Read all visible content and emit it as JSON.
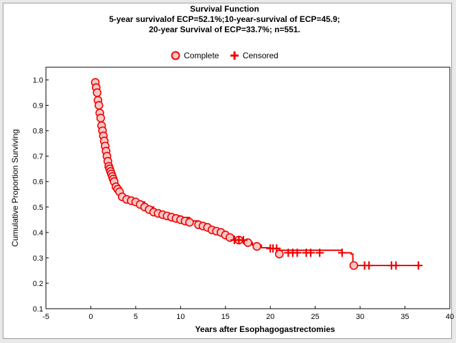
{
  "chart_data": {
    "type": "line",
    "title": "Survival Function",
    "subtitle_lines": [
      "5-year survivalof ECP=52.1%;10-year-survival of ECP=45.9;",
      "20-year Survival of ECP=33.7%; n=551."
    ],
    "xlabel": "Years after Esophagogastrectomies",
    "ylabel": "Cumulative Proportion Surviving",
    "xlim": [
      -5,
      40
    ],
    "ylim": [
      0.1,
      1.05
    ],
    "xticks": [
      -5,
      0,
      5,
      10,
      15,
      20,
      25,
      30,
      35,
      40
    ],
    "yticks": [
      0.1,
      0.2,
      0.3,
      0.4,
      0.5,
      0.6,
      0.7,
      0.8,
      0.9,
      1.0
    ],
    "grid": false,
    "legend": {
      "position": "top-center",
      "entries": [
        {
          "label": "Complete",
          "marker": "circle"
        },
        {
          "label": "Censored",
          "marker": "plus"
        }
      ]
    },
    "colors": {
      "series": "#ee0000",
      "marker_fill": "#f8c8c8"
    },
    "survival_curve": {
      "x": [
        0.3,
        0.5,
        0.8,
        1.0,
        1.2,
        1.5,
        1.8,
        2.0,
        2.3,
        2.6,
        3.0,
        3.5,
        4.0,
        5.0,
        6.0,
        7.0,
        8.0,
        9.0,
        10.0,
        11.0,
        12.0,
        13.0,
        14.0,
        15.0,
        16.0,
        17.0,
        18.0,
        19.0,
        20.0,
        21.0,
        28.0,
        29.0,
        29.2,
        29.5,
        36.5
      ],
      "y": [
        1.0,
        0.96,
        0.9,
        0.84,
        0.78,
        0.72,
        0.67,
        0.64,
        0.61,
        0.58,
        0.56,
        0.54,
        0.53,
        0.52,
        0.5,
        0.48,
        0.47,
        0.465,
        0.459,
        0.445,
        0.43,
        0.415,
        0.4,
        0.385,
        0.375,
        0.36,
        0.35,
        0.34,
        0.337,
        0.33,
        0.32,
        0.315,
        0.27,
        0.27,
        0.27
      ]
    },
    "complete_events": {
      "x": [
        0.5,
        0.6,
        0.7,
        0.8,
        0.9,
        1.0,
        1.1,
        1.2,
        1.3,
        1.4,
        1.5,
        1.6,
        1.7,
        1.8,
        1.9,
        2.0,
        2.1,
        2.2,
        2.3,
        2.4,
        2.5,
        2.6,
        2.8,
        3.0,
        3.2,
        3.5,
        4.0,
        4.5,
        5.0,
        5.5,
        6.0,
        6.5,
        7.0,
        7.5,
        8.0,
        8.5,
        9.0,
        9.5,
        10.0,
        10.5,
        11.0,
        12.0,
        12.5,
        13.0,
        13.5,
        14.0,
        14.5,
        15.0,
        15.5,
        16.5,
        17.5,
        18.5,
        21.0,
        29.3
      ],
      "y": [
        0.99,
        0.97,
        0.95,
        0.92,
        0.9,
        0.87,
        0.85,
        0.82,
        0.8,
        0.78,
        0.76,
        0.74,
        0.72,
        0.7,
        0.68,
        0.66,
        0.65,
        0.64,
        0.63,
        0.62,
        0.61,
        0.6,
        0.58,
        0.57,
        0.56,
        0.54,
        0.53,
        0.525,
        0.52,
        0.51,
        0.5,
        0.49,
        0.48,
        0.475,
        0.47,
        0.465,
        0.46,
        0.455,
        0.45,
        0.445,
        0.44,
        0.43,
        0.425,
        0.42,
        0.41,
        0.405,
        0.4,
        0.39,
        0.38,
        0.37,
        0.36,
        0.345,
        0.315,
        0.27
      ]
    },
    "censored_events": {
      "x": [
        16.0,
        16.5,
        17.0,
        20.0,
        20.3,
        20.7,
        22.0,
        22.5,
        23.0,
        24.0,
        24.5,
        25.5,
        28.0,
        30.5,
        31.0,
        33.5,
        34.0,
        36.5
      ],
      "y": [
        0.37,
        0.37,
        0.37,
        0.337,
        0.337,
        0.337,
        0.32,
        0.32,
        0.32,
        0.32,
        0.32,
        0.32,
        0.32,
        0.27,
        0.27,
        0.27,
        0.27,
        0.27
      ]
    }
  }
}
